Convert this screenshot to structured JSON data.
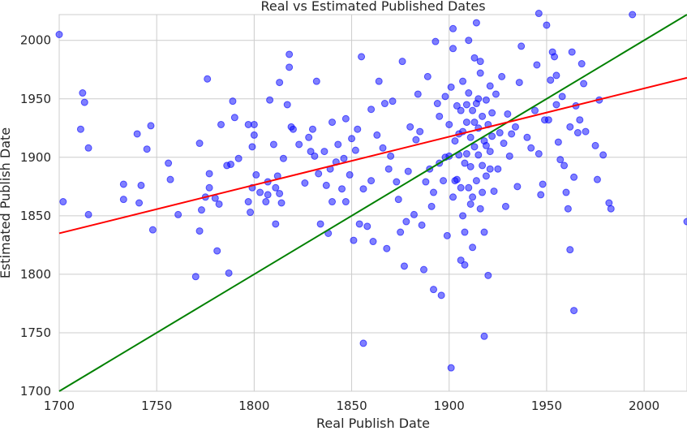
{
  "chart_data": {
    "type": "scatter",
    "title": "Real vs Estimated Published Dates",
    "xlabel": "Real Publish Date",
    "ylabel": "Estimated Publish Date",
    "xlim": [
      1700,
      2022
    ],
    "ylim": [
      1700,
      2022
    ],
    "x_ticks": [
      1700,
      1750,
      1800,
      1850,
      1900,
      1950,
      2000
    ],
    "y_ticks": [
      1700,
      1750,
      1800,
      1850,
      1900,
      1950,
      2000
    ],
    "x_tick_labels": [
      "1700",
      "1750",
      "1800",
      "1850",
      "1900",
      "1950",
      "2000"
    ],
    "y_tick_labels": [
      "1700",
      "1750",
      "1800",
      "1850",
      "1900",
      "1950",
      "2000"
    ],
    "grid": true,
    "colors": {
      "points": "#0000ff",
      "identity_line": "#008000",
      "fit_line": "#ff0000",
      "grid": "#cccccc"
    },
    "identity_line": {
      "x": [
        1700,
        2022
      ],
      "y": [
        1700,
        2022
      ]
    },
    "fit_line": {
      "x": [
        1700,
        2022
      ],
      "y": [
        1835,
        1968
      ]
    },
    "points": [
      [
        1700,
        2005
      ],
      [
        1702,
        1862
      ],
      [
        1711,
        1924
      ],
      [
        1712,
        1955
      ],
      [
        1713,
        1947
      ],
      [
        1715,
        1908
      ],
      [
        1715,
        1851
      ],
      [
        1733,
        1877
      ],
      [
        1733,
        1864
      ],
      [
        1740,
        1920
      ],
      [
        1741,
        1861
      ],
      [
        1742,
        1876
      ],
      [
        1745,
        1907
      ],
      [
        1747,
        1927
      ],
      [
        1748,
        1838
      ],
      [
        1756,
        1895
      ],
      [
        1757,
        1881
      ],
      [
        1761,
        1851
      ],
      [
        1770,
        1798
      ],
      [
        1772,
        1912
      ],
      [
        1772,
        1837
      ],
      [
        1773,
        1855
      ],
      [
        1775,
        1866
      ],
      [
        1776,
        1967
      ],
      [
        1777,
        1886
      ],
      [
        1777,
        1874
      ],
      [
        1780,
        1865
      ],
      [
        1781,
        1820
      ],
      [
        1782,
        1860
      ],
      [
        1783,
        1928
      ],
      [
        1786,
        1893
      ],
      [
        1787,
        1801
      ],
      [
        1788,
        1894
      ],
      [
        1789,
        1948
      ],
      [
        1790,
        1934
      ],
      [
        1792,
        1899
      ],
      [
        1797,
        1928
      ],
      [
        1797,
        1862
      ],
      [
        1798,
        1853
      ],
      [
        1799,
        1874
      ],
      [
        1799,
        1909
      ],
      [
        1800,
        1928
      ],
      [
        1800,
        1919
      ],
      [
        1801,
        1885
      ],
      [
        1803,
        1870
      ],
      [
        1806,
        1862
      ],
      [
        1807,
        1879
      ],
      [
        1807,
        1868
      ],
      [
        1808,
        1949
      ],
      [
        1810,
        1911
      ],
      [
        1811,
        1874
      ],
      [
        1811,
        1843
      ],
      [
        1812,
        1884
      ],
      [
        1813,
        1964
      ],
      [
        1813,
        1869
      ],
      [
        1814,
        1861
      ],
      [
        1815,
        1899
      ],
      [
        1817,
        1945
      ],
      [
        1818,
        1988
      ],
      [
        1818,
        1977
      ],
      [
        1819,
        1926
      ],
      [
        1820,
        1924
      ],
      [
        1823,
        1911
      ],
      [
        1826,
        1878
      ],
      [
        1828,
        1917
      ],
      [
        1829,
        1905
      ],
      [
        1830,
        1924
      ],
      [
        1831,
        1901
      ],
      [
        1832,
        1965
      ],
      [
        1833,
        1886
      ],
      [
        1834,
        1843
      ],
      [
        1836,
        1905
      ],
      [
        1837,
        1876
      ],
      [
        1838,
        1835
      ],
      [
        1839,
        1890
      ],
      [
        1840,
        1862
      ],
      [
        1842,
        1896
      ],
      [
        1843,
        1911
      ],
      [
        1845,
        1873
      ],
      [
        1846,
        1899
      ],
      [
        1847,
        1933
      ],
      [
        1849,
        1885
      ],
      [
        1850,
        1916
      ],
      [
        1851,
        1829
      ],
      [
        1852,
        1906
      ],
      [
        1853,
        1924
      ],
      [
        1854,
        1843
      ],
      [
        1855,
        1986
      ],
      [
        1856,
        1741
      ],
      [
        1856,
        1873
      ],
      [
        1858,
        1841
      ],
      [
        1860,
        1941
      ],
      [
        1861,
        1828
      ],
      [
        1863,
        1919
      ],
      [
        1864,
        1965
      ],
      [
        1866,
        1908
      ],
      [
        1867,
        1946
      ],
      [
        1869,
        1890
      ],
      [
        1870,
        1901
      ],
      [
        1871,
        1948
      ],
      [
        1873,
        1879
      ],
      [
        1874,
        1864
      ],
      [
        1875,
        1836
      ],
      [
        1876,
        1982
      ],
      [
        1877,
        1807
      ],
      [
        1879,
        1888
      ],
      [
        1880,
        1926
      ],
      [
        1882,
        1851
      ],
      [
        1883,
        1915
      ],
      [
        1884,
        1954
      ],
      [
        1886,
        1842
      ],
      [
        1887,
        1804
      ],
      [
        1888,
        1879
      ],
      [
        1889,
        1969
      ],
      [
        1890,
        1890
      ],
      [
        1891,
        1858
      ],
      [
        1892,
        1787
      ],
      [
        1893,
        1999
      ],
      [
        1894,
        1946
      ],
      [
        1895,
        1895
      ],
      [
        1896,
        1782
      ],
      [
        1897,
        1880
      ],
      [
        1898,
        1952
      ],
      [
        1899,
        1833
      ],
      [
        1900,
        1928
      ],
      [
        1900,
        1901
      ],
      [
        1901,
        1720
      ],
      [
        1902,
        1866
      ],
      [
        1902,
        1993
      ],
      [
        1903,
        1914
      ],
      [
        1904,
        1881
      ],
      [
        1904,
        1944
      ],
      [
        1905,
        1902
      ],
      [
        1906,
        1940
      ],
      [
        1906,
        1874
      ],
      [
        1907,
        1922
      ],
      [
        1907,
        1965
      ],
      [
        1908,
        1895
      ],
      [
        1908,
        1836
      ],
      [
        1909,
        1930
      ],
      [
        1909,
        1903
      ],
      [
        1910,
        1874
      ],
      [
        1910,
        1955
      ],
      [
        1911,
        1917
      ],
      [
        1911,
        1892
      ],
      [
        1912,
        1940
      ],
      [
        1912,
        1866
      ],
      [
        1913,
        1985
      ],
      [
        1913,
        1909
      ],
      [
        1914,
        1880
      ],
      [
        1914,
        1946
      ],
      [
        1915,
        1925
      ],
      [
        1915,
        1902
      ],
      [
        1916,
        1856
      ],
      [
        1916,
        1972
      ],
      [
        1917,
        1935
      ],
      [
        1917,
        1893
      ],
      [
        1918,
        1747
      ],
      [
        1918,
        1914
      ],
      [
        1919,
        1949
      ],
      [
        1919,
        1884
      ],
      [
        1920,
        1928
      ],
      [
        1920,
        1799
      ],
      [
        1921,
        1961
      ],
      [
        1921,
        1905
      ],
      [
        1922,
        1918
      ],
      [
        1922,
        1938
      ],
      [
        1923,
        1871
      ],
      [
        1924,
        1954
      ],
      [
        1925,
        1890
      ],
      [
        1926,
        1921
      ],
      [
        1927,
        1969
      ],
      [
        1928,
        1912
      ],
      [
        1929,
        1858
      ],
      [
        1930,
        1937
      ],
      [
        1931,
        1901
      ],
      [
        1932,
        1920
      ],
      [
        1934,
        1926
      ],
      [
        1935,
        1875
      ],
      [
        1936,
        1964
      ],
      [
        1937,
        1995
      ],
      [
        1940,
        1917
      ],
      [
        1942,
        1908
      ],
      [
        1944,
        1940
      ],
      [
        1945,
        1979
      ],
      [
        1946,
        1903
      ],
      [
        1946,
        2023
      ],
      [
        1947,
        1868
      ],
      [
        1948,
        1877
      ],
      [
        1949,
        1932
      ],
      [
        1950,
        2013
      ],
      [
        1951,
        1932
      ],
      [
        1952,
        1966
      ],
      [
        1953,
        1990
      ],
      [
        1954,
        1986
      ],
      [
        1955,
        1970
      ],
      [
        1955,
        1945
      ],
      [
        1956,
        1913
      ],
      [
        1957,
        1898
      ],
      [
        1958,
        1952
      ],
      [
        1959,
        1893
      ],
      [
        1960,
        1870
      ],
      [
        1961,
        1856
      ],
      [
        1962,
        1926
      ],
      [
        1962,
        1821
      ],
      [
        1963,
        1990
      ],
      [
        1964,
        1769
      ],
      [
        1964,
        1883
      ],
      [
        1965,
        1944
      ],
      [
        1966,
        1921
      ],
      [
        1967,
        1932
      ],
      [
        1968,
        1980
      ],
      [
        1969,
        1963
      ],
      [
        1970,
        1922
      ],
      [
        1975,
        1910
      ],
      [
        1976,
        1881
      ],
      [
        1977,
        1949
      ],
      [
        1979,
        1902
      ],
      [
        1982,
        1861
      ],
      [
        1983,
        1856
      ],
      [
        1994,
        2022
      ],
      [
        2022,
        1845
      ],
      [
        1840,
        1930
      ],
      [
        1847,
        1862
      ],
      [
        1860,
        1880
      ],
      [
        1868,
        1822
      ],
      [
        1878,
        1845
      ],
      [
        1885,
        1922
      ],
      [
        1892,
        1870
      ],
      [
        1895,
        1935
      ],
      [
        1898,
        1900
      ],
      [
        1901,
        1960
      ],
      [
        1903,
        1880
      ],
      [
        1905,
        1920
      ],
      [
        1907,
        1850
      ],
      [
        1909,
        1945
      ],
      [
        1911,
        1860
      ],
      [
        1913,
        1930
      ],
      [
        1915,
        1950
      ],
      [
        1917,
        1870
      ],
      [
        1919,
        1910
      ],
      [
        1921,
        1890
      ],
      [
        1902,
        2010
      ],
      [
        1906,
        1812
      ],
      [
        1910,
        2000
      ],
      [
        1912,
        1823
      ],
      [
        1916,
        1982
      ],
      [
        1918,
        1836
      ],
      [
        1914,
        2015
      ],
      [
        1908,
        1808
      ]
    ]
  }
}
